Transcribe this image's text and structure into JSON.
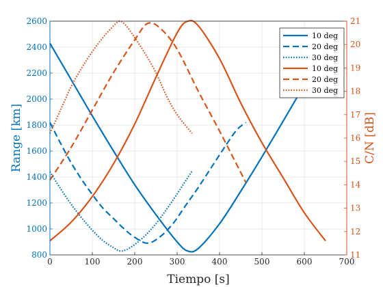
{
  "chart_data": {
    "type": "line",
    "title": "",
    "xlabel": "Tiempo [s]",
    "xlim": [
      0,
      700
    ],
    "xticks": [
      0,
      100,
      200,
      300,
      400,
      500,
      600,
      700
    ],
    "left_axis": {
      "label": "Range [km]",
      "color": "#0072BD",
      "ylim": [
        800,
        2600
      ],
      "ticks": [
        800,
        1000,
        1200,
        1400,
        1600,
        1800,
        2000,
        2200,
        2400,
        2600
      ]
    },
    "right_axis": {
      "label": "C/N [dB]",
      "color": "#D95319",
      "ylim": [
        11,
        21
      ],
      "ticks": [
        11,
        12,
        13,
        14,
        15,
        16,
        17,
        18,
        19,
        20,
        21
      ]
    },
    "grid": true,
    "legend_placement": "top-right",
    "series": [
      {
        "name": "10 deg",
        "axis": "left",
        "style": "solid",
        "x": [
          0,
          50,
          100,
          150,
          200,
          250,
          300,
          325,
          350,
          400,
          450,
          500,
          550,
          600,
          650
        ],
        "values": [
          2430,
          2150,
          1870,
          1600,
          1340,
          1110,
          900,
          830,
          850,
          1040,
          1290,
          1555,
          1830,
          2110,
          2400
        ]
      },
      {
        "name": "20 deg",
        "axis": "left",
        "style": "dashed",
        "x": [
          0,
          25,
          50,
          75,
          100,
          125,
          150,
          175,
          200,
          230,
          260,
          290,
          320,
          350,
          380,
          410,
          440,
          462
        ],
        "values": [
          1820,
          1660,
          1510,
          1380,
          1265,
          1160,
          1080,
          1000,
          935,
          890,
          940,
          1040,
          1180,
          1320,
          1470,
          1620,
          1760,
          1820
        ]
      },
      {
        "name": "30 deg",
        "axis": "left",
        "style": "dotted",
        "x": [
          0,
          25,
          50,
          75,
          100,
          125,
          150,
          165,
          180,
          200,
          225,
          250,
          275,
          300,
          335
        ],
        "values": [
          1440,
          1310,
          1190,
          1085,
          990,
          910,
          855,
          830,
          840,
          880,
          950,
          1040,
          1150,
          1270,
          1445
        ]
      },
      {
        "name": "10 deg",
        "axis": "right",
        "style": "solid",
        "x": [
          0,
          50,
          100,
          150,
          200,
          250,
          300,
          325,
          350,
          400,
          450,
          500,
          550,
          600,
          650
        ],
        "values": [
          11.6,
          12.4,
          13.5,
          14.9,
          16.6,
          18.6,
          20.5,
          21.0,
          20.8,
          19.4,
          17.5,
          15.8,
          14.3,
          12.8,
          11.6
        ]
      },
      {
        "name": "20 deg",
        "axis": "right",
        "style": "dashed",
        "x": [
          0,
          50,
          100,
          150,
          200,
          230,
          260,
          300,
          350,
          400,
          462
        ],
        "values": [
          14.2,
          15.6,
          17.2,
          18.8,
          20.2,
          20.9,
          20.7,
          19.8,
          18.0,
          16.3,
          14.1
        ]
      },
      {
        "name": "30 deg",
        "axis": "right",
        "style": "dotted",
        "x": [
          0,
          25,
          50,
          75,
          100,
          125,
          150,
          165,
          180,
          200,
          225,
          250,
          275,
          300,
          335
        ],
        "values": [
          16.2,
          17.2,
          18.2,
          19.0,
          19.7,
          20.3,
          20.8,
          21.0,
          20.8,
          20.3,
          19.6,
          18.8,
          17.8,
          17.0,
          16.2
        ]
      }
    ]
  }
}
